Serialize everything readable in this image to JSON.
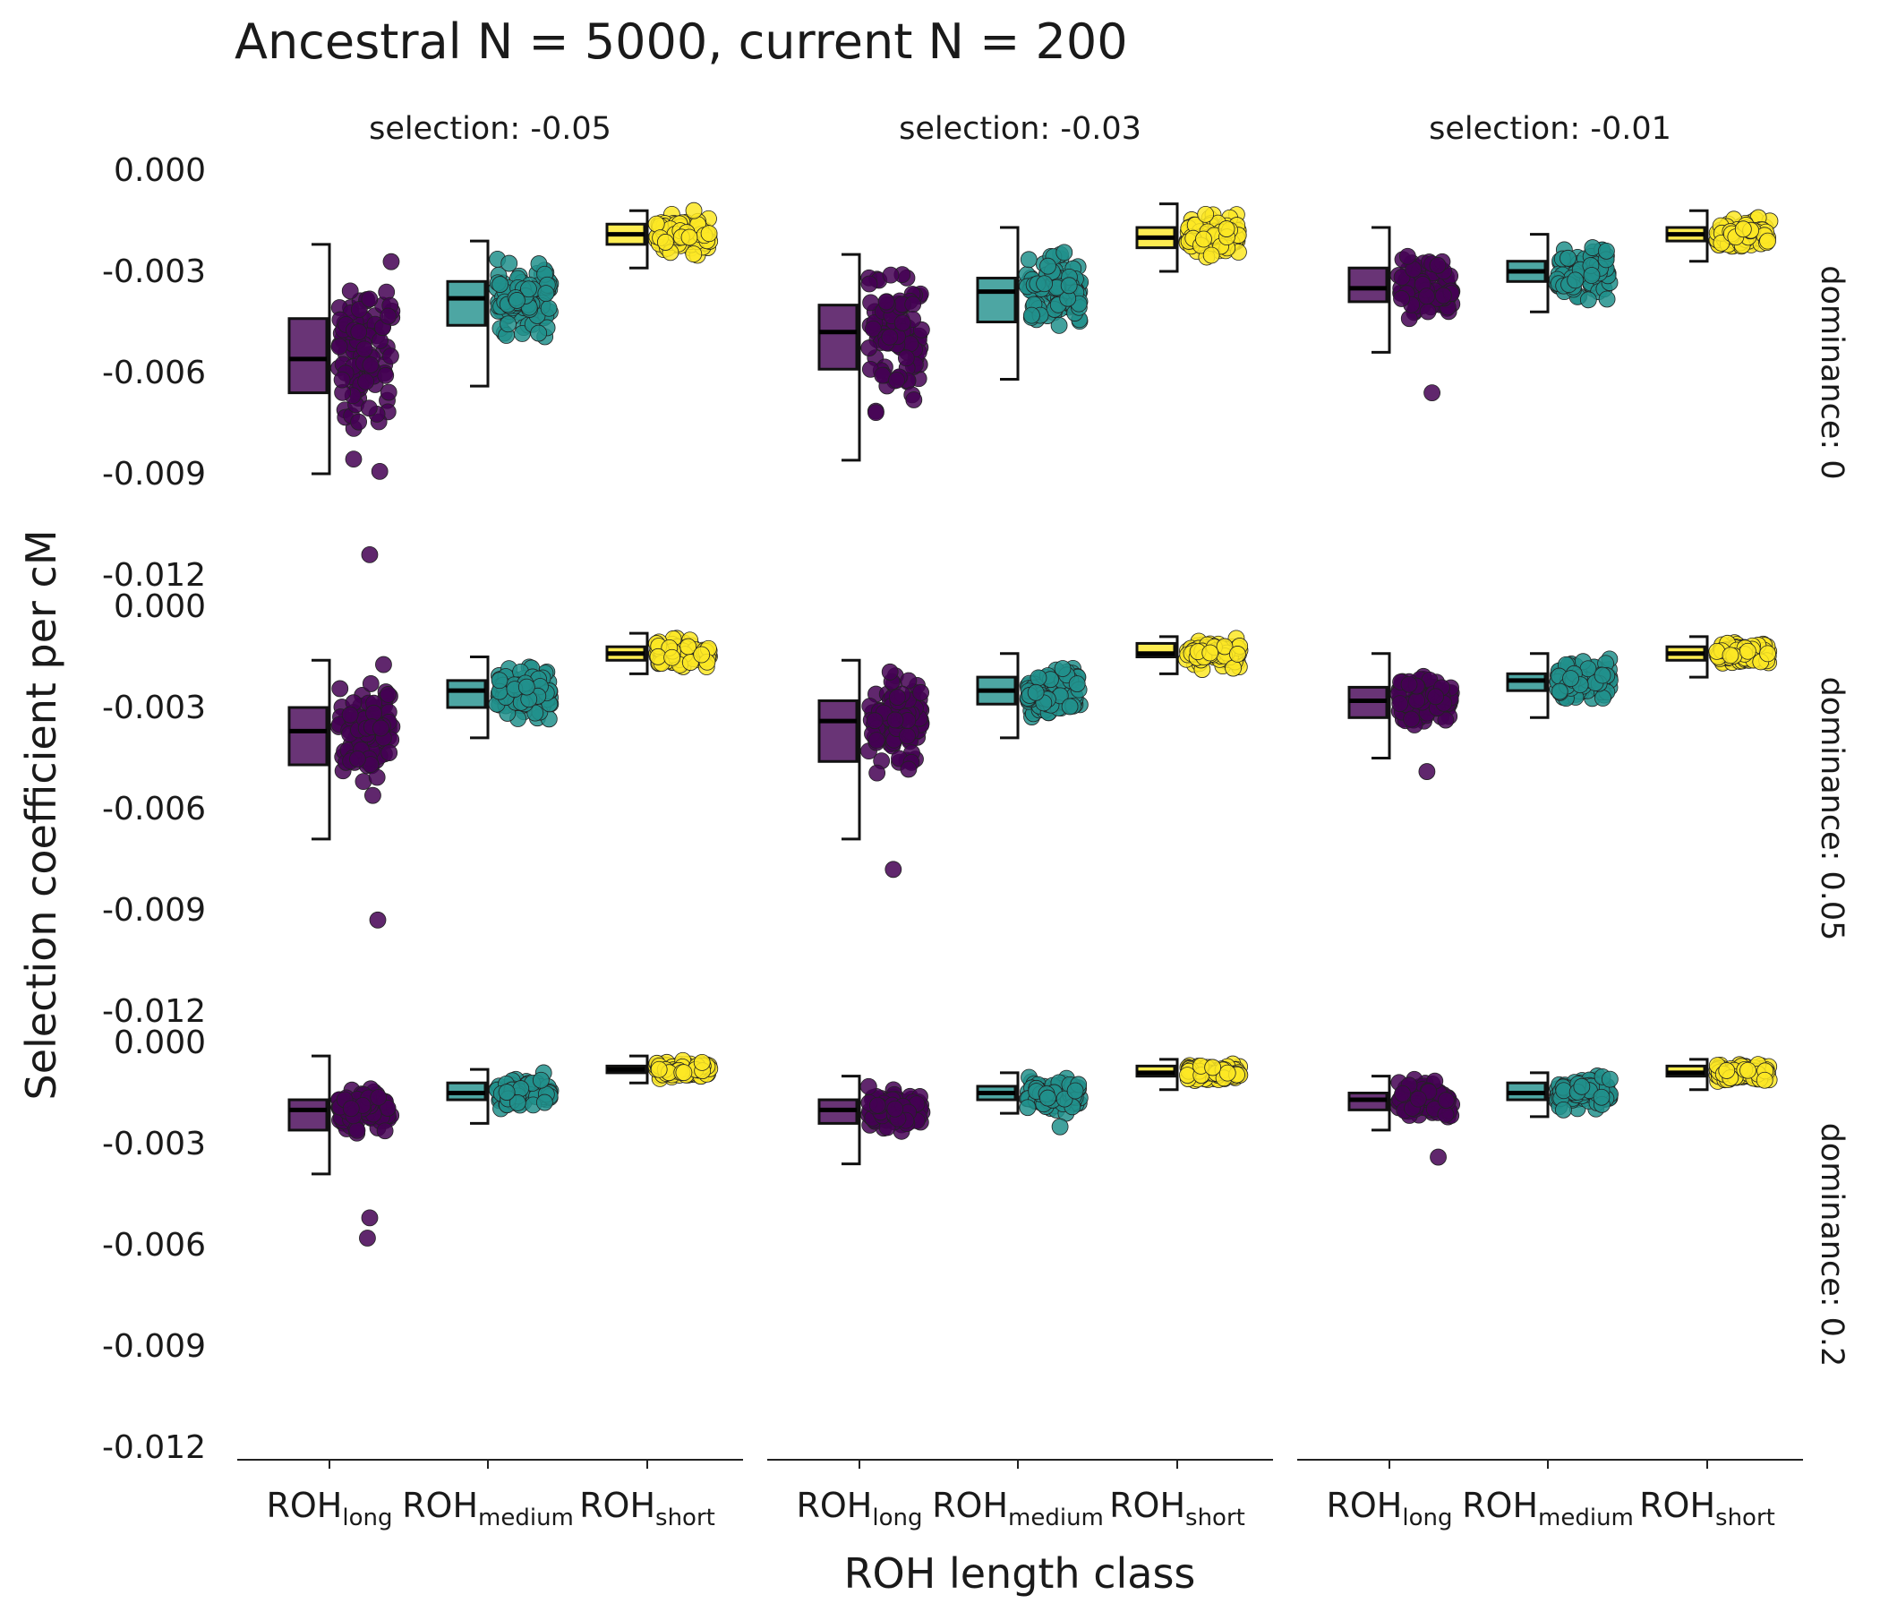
{
  "chart_data": {
    "type": "boxplot-jitter",
    "title": "Ancestral N = 5000, current N = 200",
    "xlabel": "ROH length class",
    "ylabel": "Selection coefficient per cM",
    "ylim": [
      -0.012,
      0.0
    ],
    "yticks": [
      "0.000",
      "-0.003",
      "-0.006",
      "-0.009",
      "-0.012"
    ],
    "yticks_values": [
      0.0,
      -0.003,
      -0.006,
      -0.009,
      -0.012
    ],
    "categories": [
      {
        "base": "ROH",
        "sub": "long"
      },
      {
        "base": "ROH",
        "sub": "medium"
      },
      {
        "base": "ROH",
        "sub": "short"
      }
    ],
    "category_colors": [
      "#440154",
      "#21908C",
      "#FDE725"
    ],
    "columns": [
      "selection: -0.05",
      "selection: -0.03",
      "selection: -0.01"
    ],
    "rows": [
      "dominance: 0",
      "dominance: 0.05",
      "dominance: 0.2"
    ],
    "grid": false,
    "legend": "none",
    "panels": [
      [
        {
          "q1": -0.0066,
          "median": -0.0056,
          "q3": -0.0044,
          "whisker_low": -0.009,
          "whisker_high": -0.0022,
          "spread": 0.0023,
          "outliers": [
            -0.0114
          ]
        },
        {
          "q1": -0.0046,
          "median": -0.0038,
          "q3": -0.0033,
          "whisker_low": -0.0064,
          "whisker_high": -0.0021,
          "spread": 0.0009,
          "outliers": []
        },
        {
          "q1": -0.0022,
          "median": -0.0019,
          "q3": -0.0016,
          "whisker_low": -0.0029,
          "whisker_high": -0.0012,
          "spread": 0.0005,
          "outliers": []
        }
      ],
      [
        {
          "q1": -0.0059,
          "median": -0.0048,
          "q3": -0.004,
          "whisker_low": -0.0086,
          "whisker_high": -0.0025,
          "spread": 0.0017,
          "outliers": []
        },
        {
          "q1": -0.0045,
          "median": -0.0036,
          "q3": -0.0032,
          "whisker_low": -0.0062,
          "whisker_high": -0.0017,
          "spread": 0.0009,
          "outliers": []
        },
        {
          "q1": -0.0023,
          "median": -0.002,
          "q3": -0.0017,
          "whisker_low": -0.003,
          "whisker_high": -0.001,
          "spread": 0.0005,
          "outliers": []
        }
      ],
      [
        {
          "q1": -0.0039,
          "median": -0.0035,
          "q3": -0.0029,
          "whisker_low": -0.0054,
          "whisker_high": -0.0017,
          "spread": 0.0007,
          "outliers": [
            -0.0066
          ]
        },
        {
          "q1": -0.0033,
          "median": -0.003,
          "q3": -0.0027,
          "whisker_low": -0.0042,
          "whisker_high": -0.0019,
          "spread": 0.0006,
          "outliers": []
        },
        {
          "q1": -0.0021,
          "median": -0.0019,
          "q3": -0.0017,
          "whisker_low": -0.0027,
          "whisker_high": -0.0012,
          "spread": 0.0004,
          "outliers": []
        }
      ],
      [
        {
          "q1": -0.0047,
          "median": -0.0037,
          "q3": -0.003,
          "whisker_low": -0.0069,
          "whisker_high": -0.0016,
          "spread": 0.0014,
          "outliers": [
            -0.0093
          ]
        },
        {
          "q1": -0.003,
          "median": -0.0025,
          "q3": -0.0022,
          "whisker_low": -0.0039,
          "whisker_high": -0.0015,
          "spread": 0.0006,
          "outliers": []
        },
        {
          "q1": -0.0016,
          "median": -0.0014,
          "q3": -0.0012,
          "whisker_low": -0.002,
          "whisker_high": -0.0008,
          "spread": 0.0003,
          "outliers": []
        }
      ],
      [
        {
          "q1": -0.0046,
          "median": -0.0034,
          "q3": -0.0028,
          "whisker_low": -0.0069,
          "whisker_high": -0.0016,
          "spread": 0.0012,
          "outliers": [
            -0.0078
          ]
        },
        {
          "q1": -0.0029,
          "median": -0.0025,
          "q3": -0.0021,
          "whisker_low": -0.0039,
          "whisker_high": -0.0014,
          "spread": 0.0006,
          "outliers": []
        },
        {
          "q1": -0.0015,
          "median": -0.0014,
          "q3": -0.0011,
          "whisker_low": -0.002,
          "whisker_high": -0.0009,
          "spread": 0.0003,
          "outliers": []
        }
      ],
      [
        {
          "q1": -0.0033,
          "median": -0.0028,
          "q3": -0.0024,
          "whisker_low": -0.0045,
          "whisker_high": -0.0014,
          "spread": 0.0006,
          "outliers": [
            -0.0049
          ]
        },
        {
          "q1": -0.0025,
          "median": -0.0022,
          "q3": -0.002,
          "whisker_low": -0.0033,
          "whisker_high": -0.0014,
          "spread": 0.0005,
          "outliers": []
        },
        {
          "q1": -0.0016,
          "median": -0.0014,
          "q3": -0.0012,
          "whisker_low": -0.0021,
          "whisker_high": -0.0009,
          "spread": 0.0003,
          "outliers": []
        }
      ],
      [
        {
          "q1": -0.0026,
          "median": -0.002,
          "q3": -0.0017,
          "whisker_low": -0.0039,
          "whisker_high": -0.0004,
          "spread": 0.0005,
          "outliers": [
            -0.0052,
            -0.0058
          ]
        },
        {
          "q1": -0.0017,
          "median": -0.0015,
          "q3": -0.0012,
          "whisker_low": -0.0024,
          "whisker_high": -0.0008,
          "spread": 0.0004,
          "outliers": []
        },
        {
          "q1": -0.0009,
          "median": -0.0008,
          "q3": -0.0007,
          "whisker_low": -0.0012,
          "whisker_high": -0.0004,
          "spread": 0.0002,
          "outliers": []
        }
      ],
      [
        {
          "q1": -0.0024,
          "median": -0.002,
          "q3": -0.0017,
          "whisker_low": -0.0036,
          "whisker_high": -0.001,
          "spread": 0.0005,
          "outliers": []
        },
        {
          "q1": -0.0017,
          "median": -0.0015,
          "q3": -0.0013,
          "whisker_low": -0.0021,
          "whisker_high": -0.0009,
          "spread": 0.0004,
          "outliers": [
            -0.0025
          ]
        },
        {
          "q1": -0.001,
          "median": -0.0009,
          "q3": -0.0007,
          "whisker_low": -0.0014,
          "whisker_high": -0.0005,
          "spread": 0.0002,
          "outliers": []
        }
      ],
      [
        {
          "q1": -0.002,
          "median": -0.0017,
          "q3": -0.0015,
          "whisker_low": -0.0026,
          "whisker_high": -0.001,
          "spread": 0.0004,
          "outliers": [
            -0.0034
          ]
        },
        {
          "q1": -0.0017,
          "median": -0.0015,
          "q3": -0.0012,
          "whisker_low": -0.0022,
          "whisker_high": -0.0009,
          "spread": 0.0004,
          "outliers": []
        },
        {
          "q1": -0.001,
          "median": -0.0009,
          "q3": -0.0007,
          "whisker_low": -0.0014,
          "whisker_high": -0.0005,
          "spread": 0.0002,
          "outliers": []
        }
      ]
    ]
  }
}
